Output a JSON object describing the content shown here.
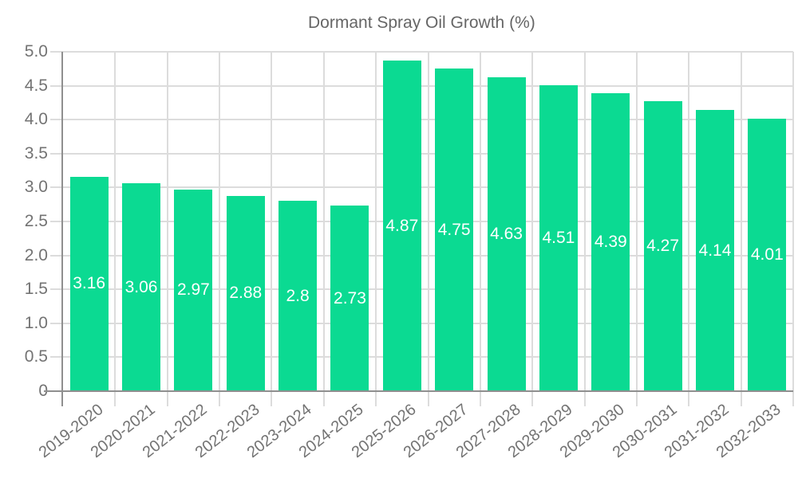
{
  "chart_data": {
    "type": "bar",
    "title": "Dormant Spray Oil Growth (%)",
    "legend": [
      "Dormant Spray Oil Growth (%)"
    ],
    "legend_position": "top-center",
    "categories": [
      "2019-2020",
      "2020-2021",
      "2021-2022",
      "2022-2023",
      "2023-2024",
      "2024-2025",
      "2025-2026",
      "2026-2027",
      "2027-2028",
      "2028-2029",
      "2029-2030",
      "2030-2031",
      "2031-2032",
      "2032-2033"
    ],
    "values": [
      3.16,
      3.06,
      2.97,
      2.88,
      2.8,
      2.73,
      4.87,
      4.75,
      4.63,
      4.51,
      4.39,
      4.27,
      4.14,
      4.01
    ],
    "xlabel": "",
    "ylabel": "",
    "ylim": [
      0,
      5
    ],
    "ytick_step": 0.5,
    "ytick_labels": [
      "0",
      "0.5",
      "1.0",
      "1.5",
      "2.0",
      "2.5",
      "3.0",
      "3.5",
      "4.0",
      "4.5",
      "5.0"
    ],
    "grid": "on",
    "value_labels_position": "inside-center",
    "colors": {
      "bar": "#0bda92",
      "bar_value_text": "#ffffff",
      "grid_line": "#dcdcdc",
      "axis_line": "#8f8f8f",
      "tick_text": "#737373",
      "legend_text": "#666666"
    }
  }
}
